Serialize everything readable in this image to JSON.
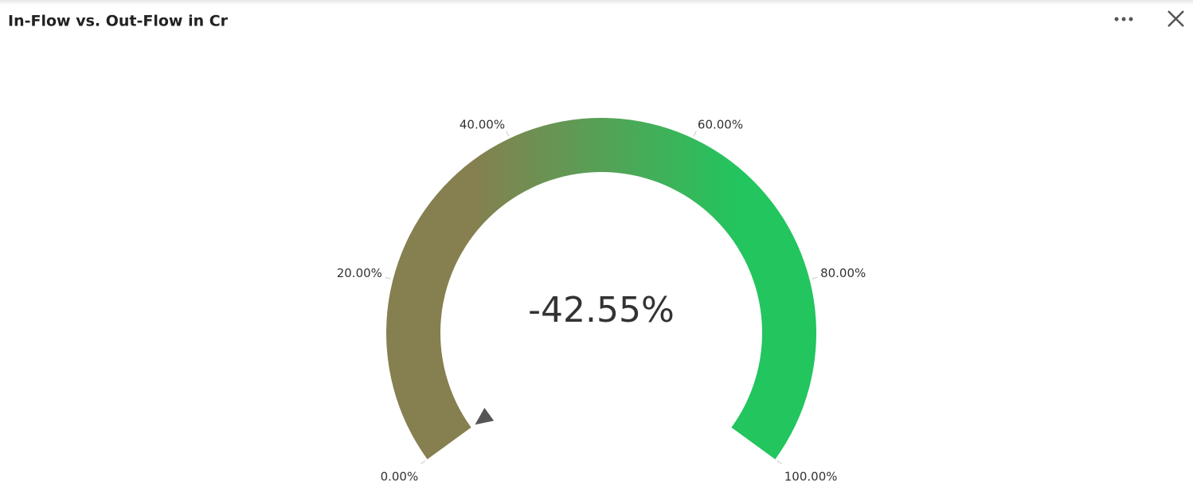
{
  "chart_data": {
    "type": "gauge",
    "title": "In-Flow vs. Out-Flow in Cr",
    "value": -42.55,
    "value_label": "-42.55%",
    "ylim": [
      0,
      100
    ],
    "yticks": [
      {
        "value": 0,
        "label": "0.00%"
      },
      {
        "value": 20,
        "label": "20.00%"
      },
      {
        "value": 40,
        "label": "40.00%"
      },
      {
        "value": 60,
        "label": "60.00%"
      },
      {
        "value": 80,
        "label": "80.00%"
      },
      {
        "value": 100,
        "label": "100.00%"
      }
    ],
    "colors": [
      "#867f4f",
      "#22c55e"
    ]
  }
}
